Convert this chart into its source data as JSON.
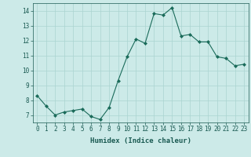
{
  "x": [
    0,
    1,
    2,
    3,
    4,
    5,
    6,
    7,
    8,
    9,
    10,
    11,
    12,
    13,
    14,
    15,
    16,
    17,
    18,
    19,
    20,
    21,
    22,
    23
  ],
  "y": [
    8.3,
    7.6,
    7.0,
    7.2,
    7.3,
    7.4,
    6.9,
    6.7,
    7.5,
    9.3,
    10.9,
    12.1,
    11.8,
    13.8,
    13.7,
    14.2,
    12.3,
    12.4,
    11.9,
    11.9,
    10.9,
    10.8,
    10.3,
    10.4
  ],
  "line_color": "#1a6b5a",
  "marker": "D",
  "marker_size": 2,
  "bg_color": "#cceae8",
  "grid_color": "#aad4d0",
  "xlabel": "Humidex (Indice chaleur)",
  "xlim": [
    -0.5,
    23.5
  ],
  "ylim": [
    6.5,
    14.5
  ],
  "yticks": [
    7,
    8,
    9,
    10,
    11,
    12,
    13,
    14
  ],
  "xticks": [
    0,
    1,
    2,
    3,
    4,
    5,
    6,
    7,
    8,
    9,
    10,
    11,
    12,
    13,
    14,
    15,
    16,
    17,
    18,
    19,
    20,
    21,
    22,
    23
  ],
  "tick_fontsize": 5.5,
  "xlabel_fontsize": 6.5,
  "label_color": "#1a5a52"
}
